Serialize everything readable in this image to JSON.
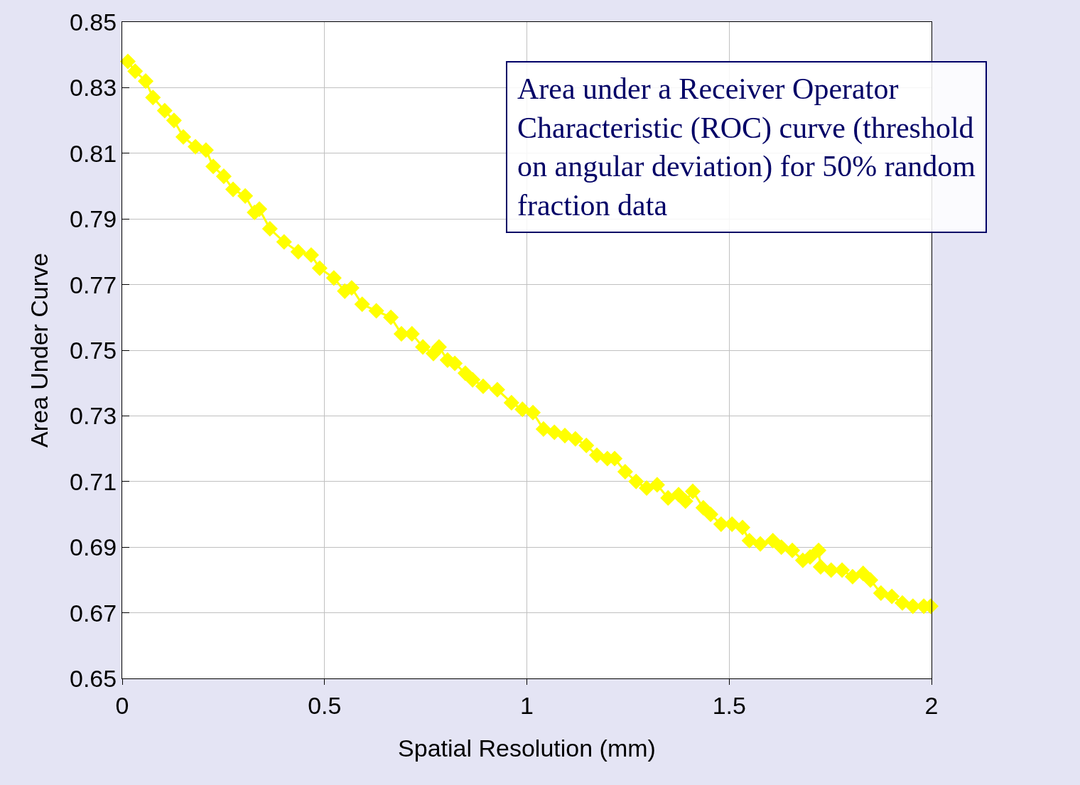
{
  "chart_data": {
    "type": "line",
    "xlabel": "Spatial Resolution (mm)",
    "ylabel": "Area Under Curve",
    "annotations": [
      "Area under a Receiver Operator Characteristic (ROC) curve (threshold on angular deviation) for 50% random fraction data"
    ],
    "xlim": [
      0,
      2
    ],
    "xticks": [
      0,
      0.5,
      1,
      1.5,
      2
    ],
    "ylim": [
      0.65,
      0.85
    ],
    "yticks": [
      0.65,
      0.67,
      0.69,
      0.71,
      0.73,
      0.75,
      0.77,
      0.79,
      0.81,
      0.83,
      0.85
    ],
    "grid": true,
    "marker": "diamond",
    "line_style": "solid",
    "series": [
      {
        "color": "#ffff00",
        "x": [
          0.014,
          0.032,
          0.058,
          0.076,
          0.105,
          0.128,
          0.151,
          0.181,
          0.207,
          0.225,
          0.251,
          0.274,
          0.304,
          0.327,
          0.339,
          0.365,
          0.4,
          0.435,
          0.467,
          0.488,
          0.523,
          0.55,
          0.567,
          0.593,
          0.628,
          0.664,
          0.69,
          0.716,
          0.743,
          0.769,
          0.783,
          0.804,
          0.822,
          0.848,
          0.866,
          0.892,
          0.927,
          0.962,
          0.989,
          1.015,
          1.041,
          1.068,
          1.094,
          1.12,
          1.147,
          1.173,
          1.199,
          1.217,
          1.243,
          1.27,
          1.296,
          1.322,
          1.349,
          1.375,
          1.392,
          1.41,
          1.436,
          1.454,
          1.48,
          1.507,
          1.533,
          1.55,
          1.577,
          1.608,
          1.629,
          1.656,
          1.682,
          1.7,
          1.721,
          1.726,
          1.752,
          1.779,
          1.805,
          1.831,
          1.849,
          1.875,
          1.902,
          1.928,
          1.954,
          1.981,
          1.998
        ],
        "values": [
          0.838,
          0.835,
          0.832,
          0.827,
          0.823,
          0.82,
          0.815,
          0.812,
          0.811,
          0.806,
          0.803,
          0.799,
          0.797,
          0.792,
          0.793,
          0.787,
          0.783,
          0.78,
          0.779,
          0.775,
          0.772,
          0.768,
          0.769,
          0.764,
          0.762,
          0.76,
          0.755,
          0.755,
          0.751,
          0.749,
          0.751,
          0.747,
          0.746,
          0.743,
          0.741,
          0.739,
          0.738,
          0.734,
          0.732,
          0.731,
          0.726,
          0.725,
          0.724,
          0.723,
          0.721,
          0.718,
          0.717,
          0.717,
          0.713,
          0.71,
          0.708,
          0.709,
          0.705,
          0.706,
          0.704,
          0.707,
          0.702,
          0.7,
          0.697,
          0.697,
          0.696,
          0.692,
          0.691,
          0.692,
          0.69,
          0.689,
          0.686,
          0.687,
          0.689,
          0.684,
          0.683,
          0.683,
          0.681,
          0.682,
          0.68,
          0.676,
          0.675,
          0.673,
          0.672,
          0.672,
          0.672
        ]
      }
    ]
  }
}
